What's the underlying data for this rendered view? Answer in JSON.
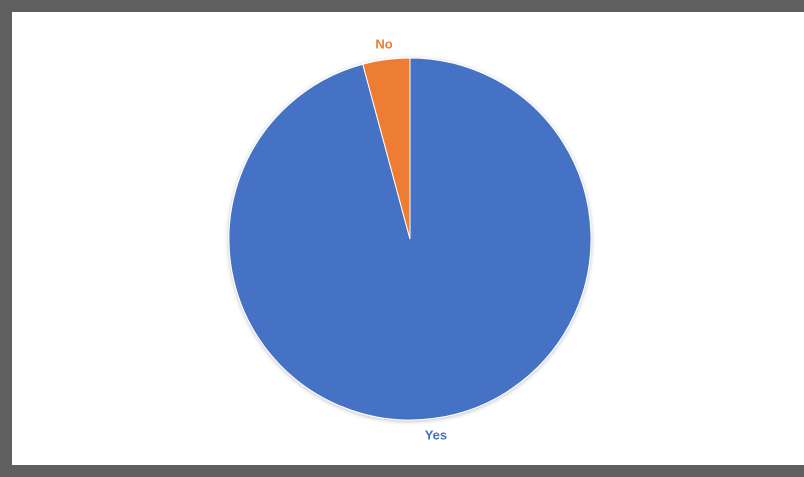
{
  "chart_data": {
    "type": "pie",
    "title": "",
    "start_angle_deg": 0,
    "direction": "clockwise",
    "legend": "none",
    "slices": [
      {
        "label": "Yes",
        "value": 95.8,
        "color": "#4472C4"
      },
      {
        "label": "No",
        "value": 4.2,
        "color": "#ED7D31"
      }
    ]
  }
}
